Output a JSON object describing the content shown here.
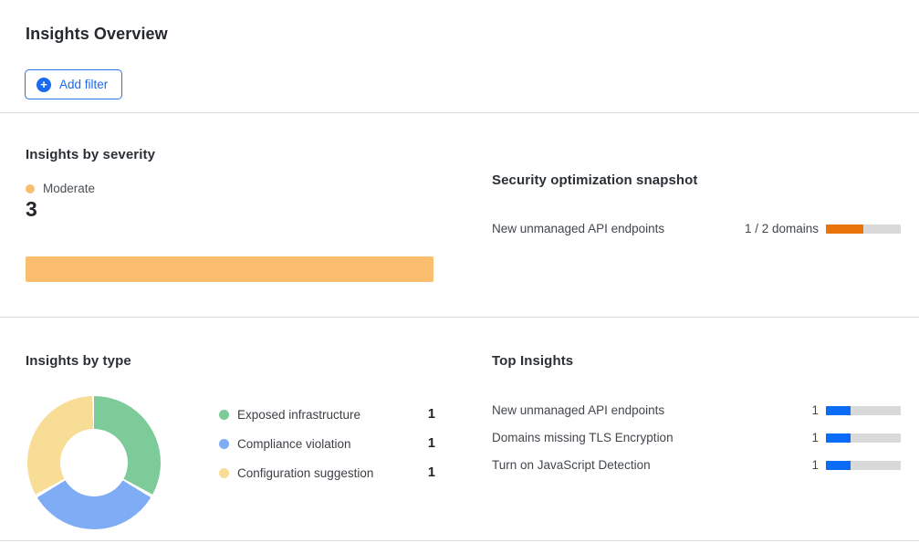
{
  "page": {
    "title": "Insights Overview"
  },
  "toolbar": {
    "add_filter_label": "Add filter",
    "add_filter_icon": "+",
    "accent_blue": "#1a6af0"
  },
  "severity": {
    "title": "Insights by severity",
    "legend": [
      {
        "label": "Moderate",
        "color": "#f9be71"
      }
    ],
    "count": "3",
    "bar_color": "#fbbd6e"
  },
  "snapshot": {
    "title": "Security optimization snapshot",
    "rows": [
      {
        "label": "New unmanaged API endpoints",
        "value": "1 / 2 domains",
        "progress": 50,
        "fill_color": "#e8730b"
      }
    ]
  },
  "by_type": {
    "title": "Insights by type",
    "items": [
      {
        "label": "Exposed infrastructure",
        "value": "1",
        "color": "#7ccb98"
      },
      {
        "label": "Compliance violation",
        "value": "1",
        "color": "#7eacf5"
      },
      {
        "label": "Configuration suggestion",
        "value": "1",
        "color": "#f7dd96"
      }
    ]
  },
  "top_insights": {
    "title": "Top Insights",
    "rows": [
      {
        "label": "New unmanaged API endpoints",
        "value": "1",
        "progress": 33,
        "fill_color": "#0b6cf7"
      },
      {
        "label": "Domains missing TLS Encryption",
        "value": "1",
        "progress": 33,
        "fill_color": "#0b6cf7"
      },
      {
        "label": "Turn on JavaScript Detection",
        "value": "1",
        "progress": 33,
        "fill_color": "#0b6cf7"
      }
    ]
  },
  "chart_data": [
    {
      "type": "bar",
      "title": "Insights by severity",
      "categories": [
        "Moderate"
      ],
      "values": [
        3
      ],
      "colors": [
        "#fbbd6e"
      ],
      "orientation": "horizontal",
      "legend_position": "top"
    },
    {
      "type": "pie",
      "subtype": "donut",
      "title": "Insights by type",
      "categories": [
        "Exposed infrastructure",
        "Compliance violation",
        "Configuration suggestion"
      ],
      "values": [
        1,
        1,
        1
      ],
      "colors": [
        "#7ccb98",
        "#7eacf5",
        "#f7dd96"
      ],
      "legend_position": "right"
    },
    {
      "type": "bar",
      "title": "Security optimization snapshot",
      "categories": [
        "New unmanaged API endpoints"
      ],
      "values": [
        1
      ],
      "value_labels": [
        "1 / 2 domains"
      ],
      "xlim": [
        0,
        2
      ],
      "colors": [
        "#e8730b"
      ],
      "orientation": "horizontal"
    },
    {
      "type": "bar",
      "title": "Top Insights",
      "categories": [
        "New unmanaged API endpoints",
        "Domains missing TLS Encryption",
        "Turn on JavaScript Detection"
      ],
      "values": [
        1,
        1,
        1
      ],
      "xlim": [
        0,
        3
      ],
      "colors": [
        "#0b6cf7",
        "#0b6cf7",
        "#0b6cf7"
      ],
      "orientation": "horizontal"
    }
  ]
}
